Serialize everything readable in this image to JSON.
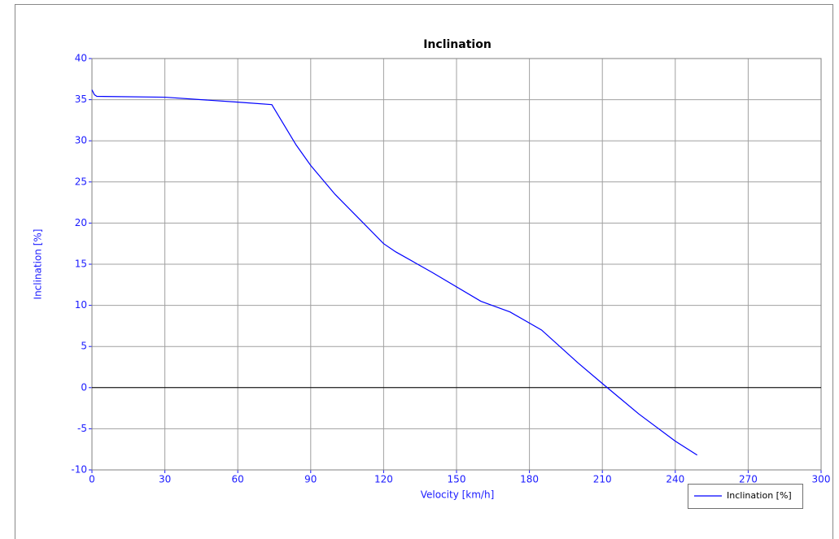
{
  "chart_data": {
    "type": "line",
    "title": "Inclination",
    "x_label": "Velocity [km/h]",
    "y_label": "Inclination [%]",
    "x": [
      0,
      1,
      2,
      30,
      60,
      74,
      84,
      90,
      100,
      110,
      120,
      125,
      140,
      160,
      172,
      185,
      200,
      210,
      225,
      240,
      249
    ],
    "series": [
      {
        "name": "Inclination [%]",
        "color": "#0000ff",
        "values": [
          36.2,
          35.6,
          35.4,
          35.3,
          34.7,
          34.4,
          29.5,
          27,
          23.5,
          20.5,
          17.5,
          16.5,
          14,
          10.5,
          9.2,
          7,
          3,
          0.5,
          -3.2,
          -6.5,
          -8.2
        ]
      }
    ],
    "xlim": [
      0,
      300
    ],
    "xticks": [
      0,
      30,
      60,
      90,
      120,
      150,
      180,
      210,
      240,
      270,
      300
    ],
    "ylim": [
      -10,
      40
    ],
    "yticks": [
      -10,
      -5,
      0,
      5,
      10,
      15,
      20,
      25,
      30,
      35,
      40
    ],
    "grid": true,
    "zero_line": true,
    "legend": "lower right"
  }
}
